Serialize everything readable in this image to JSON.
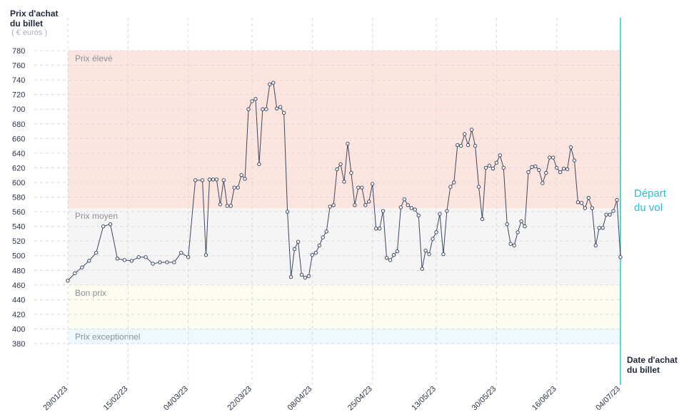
{
  "chart_data": {
    "type": "line",
    "y_label": "Prix d'achat du billet",
    "y_unit": "( € euros )",
    "x_label": "Date d'achat du billet",
    "zones": [
      {
        "name": "Prix élevé",
        "from": 565,
        "to": 780,
        "color": "#fde5df"
      },
      {
        "name": "Prix moyen",
        "from": 460,
        "to": 565,
        "color": "#f5f5f6"
      },
      {
        "name": "Bon prix",
        "from": 400,
        "to": 460,
        "color": "#fcfcf0"
      },
      {
        "name": "Prix exceptionnel",
        "from": 380,
        "to": 400,
        "color": "#edf9fc"
      }
    ],
    "departure": {
      "x": "04/07/23",
      "label": "Départ du vol",
      "color": "#2bc0d8"
    },
    "color": "#3b4760",
    "grid": true,
    "ylim": [
      380,
      780
    ],
    "yticks": [
      380,
      400,
      420,
      440,
      460,
      480,
      500,
      520,
      540,
      560,
      580,
      600,
      620,
      640,
      660,
      680,
      700,
      720,
      740,
      760,
      780
    ],
    "xlim": [
      "29/01/23",
      "04/07/23"
    ],
    "xticks": [
      "29/01/23",
      "15/02/23",
      "04/03/23",
      "22/03/23",
      "08/04/23",
      "25/04/23",
      "13/05/23",
      "30/05/23",
      "16/06/23",
      "04/07/23"
    ],
    "x": [
      "29/01/23",
      "31/01/23",
      "02/02/23",
      "04/02/23",
      "06/02/23",
      "08/02/23",
      "10/02/23",
      "12/02/23",
      "14/02/23",
      "16/02/23",
      "18/02/23",
      "20/02/23",
      "22/02/23",
      "24/02/23",
      "26/02/23",
      "28/02/23",
      "02/03/23",
      "04/03/23",
      "06/03/23",
      "08/03/23",
      "09/03/23",
      "10/03/23",
      "11/03/23",
      "12/03/23",
      "13/03/23",
      "14/03/23",
      "15/03/23",
      "16/03/23",
      "17/03/23",
      "18/03/23",
      "19/03/23",
      "20/03/23",
      "21/03/23",
      "22/03/23",
      "23/03/23",
      "24/03/23",
      "25/03/23",
      "26/03/23",
      "27/03/23",
      "28/03/23",
      "29/03/23",
      "30/03/23",
      "31/03/23",
      "01/04/23",
      "02/04/23",
      "03/04/23",
      "04/04/23",
      "05/04/23",
      "06/04/23",
      "07/04/23",
      "08/04/23",
      "09/04/23",
      "10/04/23",
      "11/04/23",
      "12/04/23",
      "13/04/23",
      "14/04/23",
      "15/04/23",
      "16/04/23",
      "17/04/23",
      "18/04/23",
      "19/04/23",
      "20/04/23",
      "21/04/23",
      "22/04/23",
      "23/04/23",
      "24/04/23",
      "25/04/23",
      "26/04/23",
      "27/04/23",
      "28/04/23",
      "29/04/23",
      "30/04/23",
      "01/05/23",
      "02/05/23",
      "03/05/23",
      "04/05/23",
      "05/05/23",
      "06/05/23",
      "07/05/23",
      "08/05/23",
      "09/05/23",
      "10/05/23",
      "11/05/23",
      "12/05/23",
      "13/05/23",
      "14/05/23",
      "15/05/23",
      "16/05/23",
      "17/05/23",
      "18/05/23",
      "19/05/23",
      "20/05/23",
      "21/05/23",
      "22/05/23",
      "23/05/23",
      "24/05/23",
      "25/05/23",
      "26/05/23",
      "27/05/23",
      "28/05/23",
      "29/05/23",
      "30/05/23",
      "31/05/23",
      "01/06/23",
      "02/06/23",
      "03/06/23",
      "04/06/23",
      "05/06/23",
      "06/06/23",
      "07/06/23",
      "08/06/23",
      "09/06/23",
      "10/06/23",
      "11/06/23",
      "12/06/23",
      "13/06/23",
      "14/06/23",
      "15/06/23",
      "16/06/23",
      "17/06/23",
      "18/06/23",
      "19/06/23",
      "20/06/23",
      "21/06/23",
      "22/06/23",
      "23/06/23",
      "24/06/23",
      "25/06/23",
      "26/06/23",
      "27/06/23",
      "28/06/23",
      "29/06/23",
      "30/06/23",
      "01/07/23",
      "02/07/23",
      "03/07/23",
      "04/07/23"
    ],
    "values": [
      466,
      476,
      484,
      493,
      504,
      540,
      543,
      496,
      494,
      493,
      498,
      498,
      489,
      491,
      491,
      491,
      504,
      498,
      603,
      603,
      501,
      604,
      604,
      604,
      570,
      603,
      568,
      568,
      593,
      593,
      610,
      605,
      700,
      711,
      714,
      625,
      700,
      700,
      734,
      736,
      701,
      703,
      695,
      560,
      471,
      509,
      519,
      474,
      470,
      472,
      501,
      504,
      514,
      525,
      533,
      567,
      569,
      618,
      625,
      601,
      653,
      613,
      569,
      593,
      593,
      569,
      574,
      598,
      537,
      537,
      561,
      497,
      494,
      501,
      506,
      566,
      577,
      569,
      565,
      563,
      555,
      482,
      507,
      502,
      523,
      532,
      557,
      502,
      561,
      594,
      600,
      651,
      650,
      666,
      651,
      672,
      650,
      594,
      550,
      620,
      623,
      619,
      627,
      637,
      620,
      543,
      516,
      514,
      532,
      547,
      540,
      614,
      621,
      622,
      617,
      599,
      613,
      634,
      634,
      620,
      614,
      619,
      618,
      648,
      630,
      573,
      572,
      565,
      579,
      565,
      514,
      538,
      538,
      556,
      556,
      561,
      576,
      498
    ]
  }
}
